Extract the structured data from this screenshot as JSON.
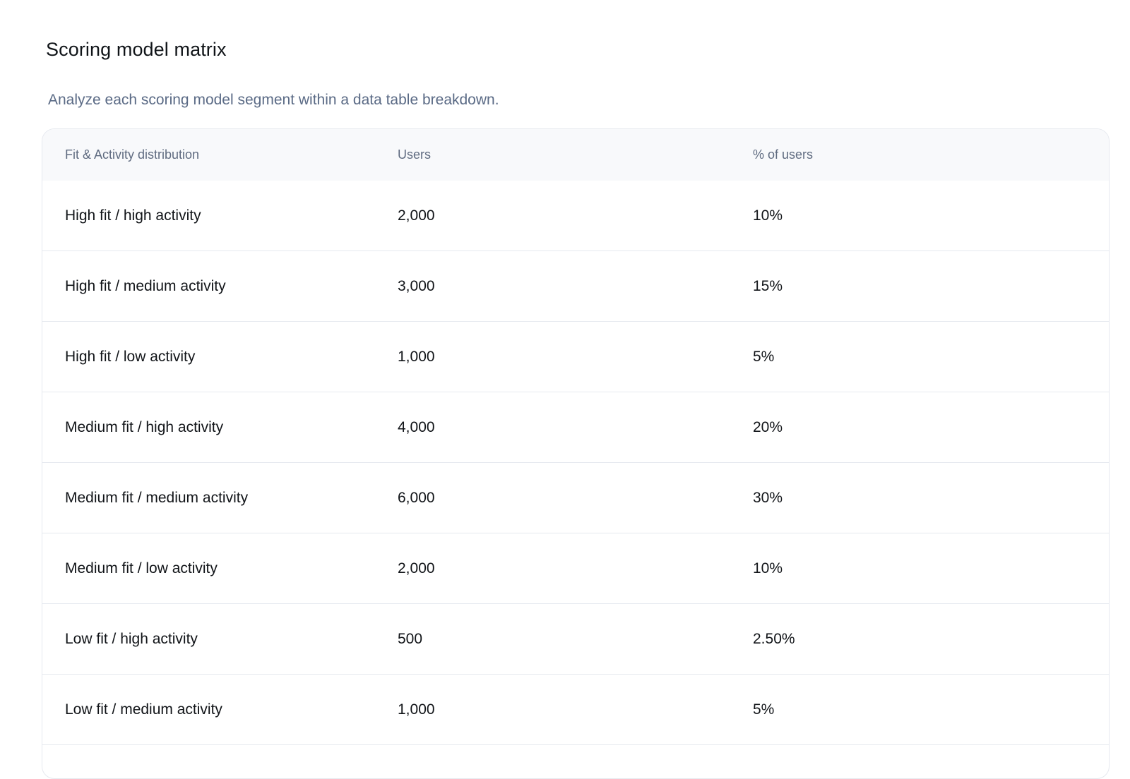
{
  "page": {
    "title": "Scoring model matrix",
    "subtitle": "Analyze each scoring model segment within a data table breakdown."
  },
  "table": {
    "headers": [
      "Fit & Activity  distribution",
      "Users",
      "% of users"
    ],
    "rows": [
      {
        "segment": "High fit / high activity",
        "users": "2,000",
        "percent": "10%"
      },
      {
        "segment": "High fit / medium activity",
        "users": "3,000",
        "percent": "15%"
      },
      {
        "segment": "High fit / low activity",
        "users": "1,000",
        "percent": "5%"
      },
      {
        "segment": "Medium fit / high activity",
        "users": "4,000",
        "percent": "20%"
      },
      {
        "segment": "Medium fit / medium activity",
        "users": "6,000",
        "percent": "30%"
      },
      {
        "segment": "Medium fit / low activity",
        "users": "2,000",
        "percent": "10%"
      },
      {
        "segment": "Low fit / high activity",
        "users": "500",
        "percent": "2.50%"
      },
      {
        "segment": "Low fit / medium activity",
        "users": "1,000",
        "percent": "5%"
      }
    ]
  }
}
